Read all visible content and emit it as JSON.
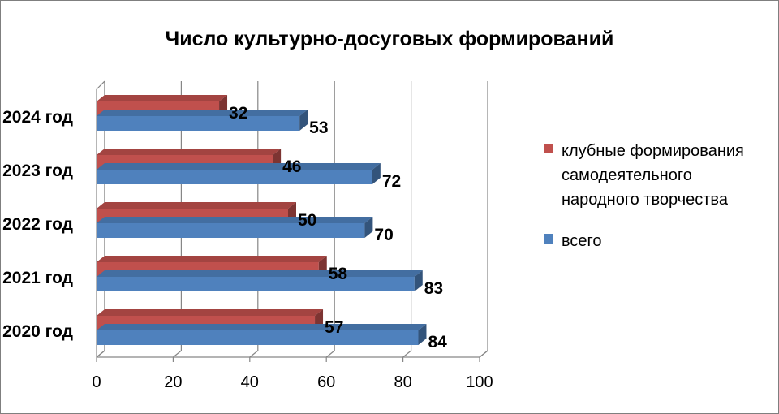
{
  "chart_data": {
    "type": "bar",
    "orientation": "horizontal",
    "three_d": true,
    "title": "Число культурно-досуговых формирований",
    "categories": [
      "2024 год",
      "2023 год",
      "2022 год",
      "2021 год",
      "2020 год"
    ],
    "series": [
      {
        "name": "клубные формирования самодеятельного народного творчества",
        "color": "#c0504d",
        "values": [
          32,
          46,
          50,
          58,
          57
        ]
      },
      {
        "name": "всего",
        "color": "#4f81bd",
        "values": [
          53,
          72,
          70,
          83,
          84
        ]
      }
    ],
    "legend_lines": [
      [
        "клубные формирования",
        "самодеятельного",
        "народного творчества"
      ],
      [
        "всего"
      ]
    ],
    "xlim": [
      0,
      100
    ],
    "xticks": [
      0,
      20,
      40,
      60,
      80,
      100
    ],
    "grid": true,
    "legend_position": "right"
  }
}
